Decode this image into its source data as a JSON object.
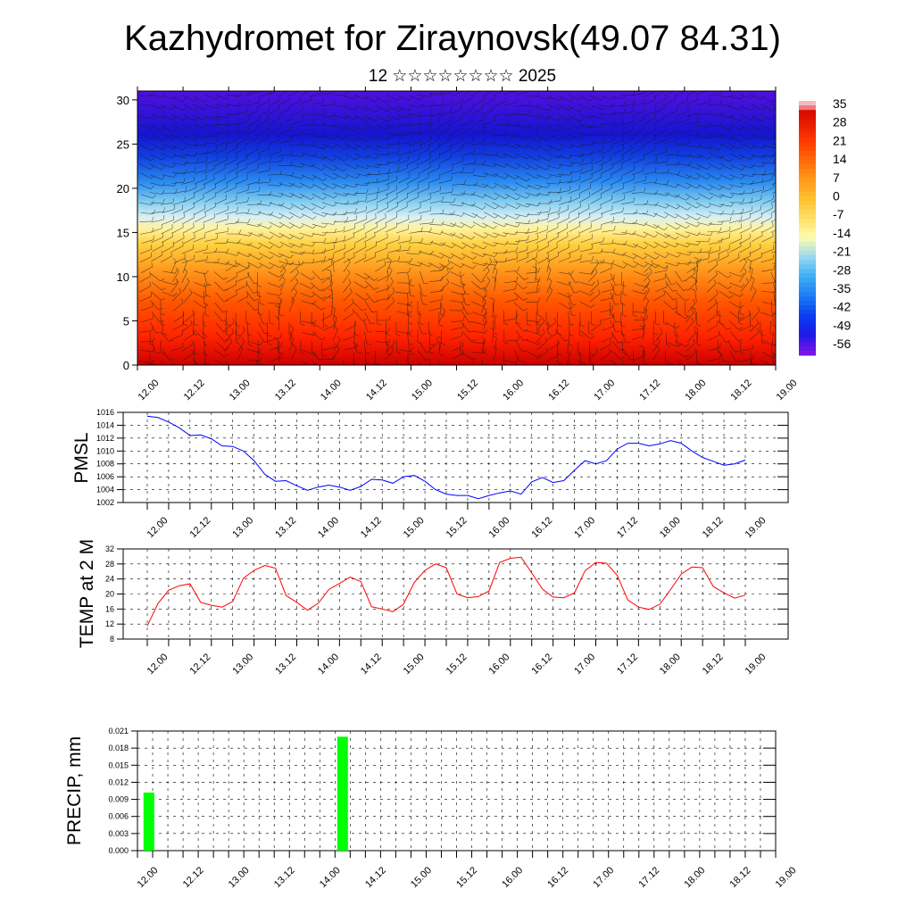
{
  "title": "Kazhydromet for Ziraynovsk(49.07 84.31)",
  "subtitle": "12 ☆☆☆☆☆☆☆☆ 2025",
  "chart_data": [
    {
      "type": "heatmap",
      "name": "vertical-section",
      "xlabels": [
        "12.00",
        "12.12",
        "13.00",
        "13.12",
        "14.00",
        "14.12",
        "15.00",
        "15.12",
        "16.00",
        "16.12",
        "17.00",
        "17.12",
        "18.00",
        "18.12",
        "19.00"
      ],
      "yticks": [
        0,
        5,
        10,
        15,
        20,
        25,
        30
      ],
      "ylim": [
        0,
        31
      ],
      "colorbar_labels": [
        35,
        28,
        21,
        14,
        7,
        0,
        -7,
        -14,
        -21,
        -28,
        -35,
        -42,
        -49,
        -56
      ],
      "colorbar_range": [
        -60,
        38
      ],
      "colors": [
        "#7a14e8",
        "#1a1ae6",
        "#0a40f0",
        "#1e7ef5",
        "#3fb0f5",
        "#9ad8f0",
        "#fffbb0",
        "#ffe066",
        "#ffc030",
        "#ff9a1a",
        "#ff6a0a",
        "#ff3a00",
        "#e61a00",
        "#cc0000"
      ],
      "has_wind_barbs": true
    },
    {
      "type": "line",
      "name": "pmsl",
      "ylabel": "PMSL",
      "xlabels": [
        "12.00",
        "12.12",
        "13.00",
        "13.12",
        "14.00",
        "14.12",
        "15.00",
        "15.12",
        "16.00",
        "16.12",
        "17.00",
        "17.12",
        "18.00",
        "18.12",
        "19.00"
      ],
      "yticks": [
        1002,
        1004,
        1006,
        1008,
        1010,
        1012,
        1014,
        1016
      ],
      "ylim": [
        1002,
        1016
      ],
      "color": "#0000ff",
      "values": [
        1015.4,
        1015.2,
        1014.5,
        1013.6,
        1012.4,
        1012.5,
        1011.9,
        1010.8,
        1010.7,
        1010.0,
        1008.5,
        1006.4,
        1005.3,
        1005.4,
        1004.6,
        1003.9,
        1004.4,
        1004.7,
        1004.4,
        1003.9,
        1004.5,
        1005.6,
        1005.5,
        1005.0,
        1006.0,
        1006.2,
        1005.3,
        1004.0,
        1003.3,
        1003.1,
        1003.1,
        1002.6,
        1003.1,
        1003.5,
        1003.8,
        1003.3,
        1005.2,
        1005.9,
        1005.1,
        1005.4,
        1007.0,
        1008.5,
        1008.0,
        1008.5,
        1010.3,
        1011.2,
        1011.2,
        1010.8,
        1011.1,
        1011.6,
        1011.2,
        1010.0,
        1009.0,
        1008.4,
        1007.8,
        1008.0,
        1008.6
      ]
    },
    {
      "type": "line",
      "name": "temp2m",
      "ylabel": "TEMP at 2 M",
      "xlabels": [
        "12.00",
        "12.12",
        "13.00",
        "13.12",
        "14.00",
        "14.12",
        "15.00",
        "15.12",
        "16.00",
        "16.12",
        "17.00",
        "17.12",
        "18.00",
        "18.12",
        "19.00"
      ],
      "yticks": [
        8,
        12,
        16,
        20,
        24,
        28,
        32
      ],
      "ylim": [
        8,
        32
      ],
      "color": "#ff0000",
      "values": [
        11.5,
        17.5,
        21,
        22.2,
        22.7,
        17.8,
        17,
        16.5,
        18,
        24.2,
        26.3,
        27.6,
        26.9,
        19.6,
        17.8,
        15.7,
        17.5,
        21.2,
        22.8,
        24.5,
        23.3,
        16.6,
        16,
        15.3,
        17.3,
        23.1,
        26.3,
        28,
        27,
        20,
        19,
        19.3,
        20.8,
        28.4,
        29.5,
        29.8,
        25.6,
        21.3,
        19.2,
        19,
        20.3,
        26.2,
        28.4,
        28.2,
        25,
        18.4,
        16.5,
        15.9,
        17.3,
        21.2,
        25.3,
        27.2,
        27,
        22,
        20.3,
        18.9,
        19.7
      ]
    },
    {
      "type": "bar",
      "name": "precip",
      "ylabel": "PRECIP, mm",
      "xlabels": [
        "12.00",
        "12.12",
        "13.00",
        "13.12",
        "14.00",
        "14.12",
        "15.00",
        "15.12",
        "16.00",
        "16.12",
        "17.00",
        "17.12",
        "18.00",
        "18.12",
        "19.00"
      ],
      "yticks": [
        "0.000",
        "0.003",
        "0.006",
        "0.009",
        "0.012",
        "0.015",
        "0.018",
        "0.021"
      ],
      "ylim": [
        0,
        0.021
      ],
      "color": "#00ff00",
      "bars": [
        {
          "x": 0.25,
          "value": 0.0102
        },
        {
          "x": 4.5,
          "value": 0.02
        }
      ]
    }
  ]
}
